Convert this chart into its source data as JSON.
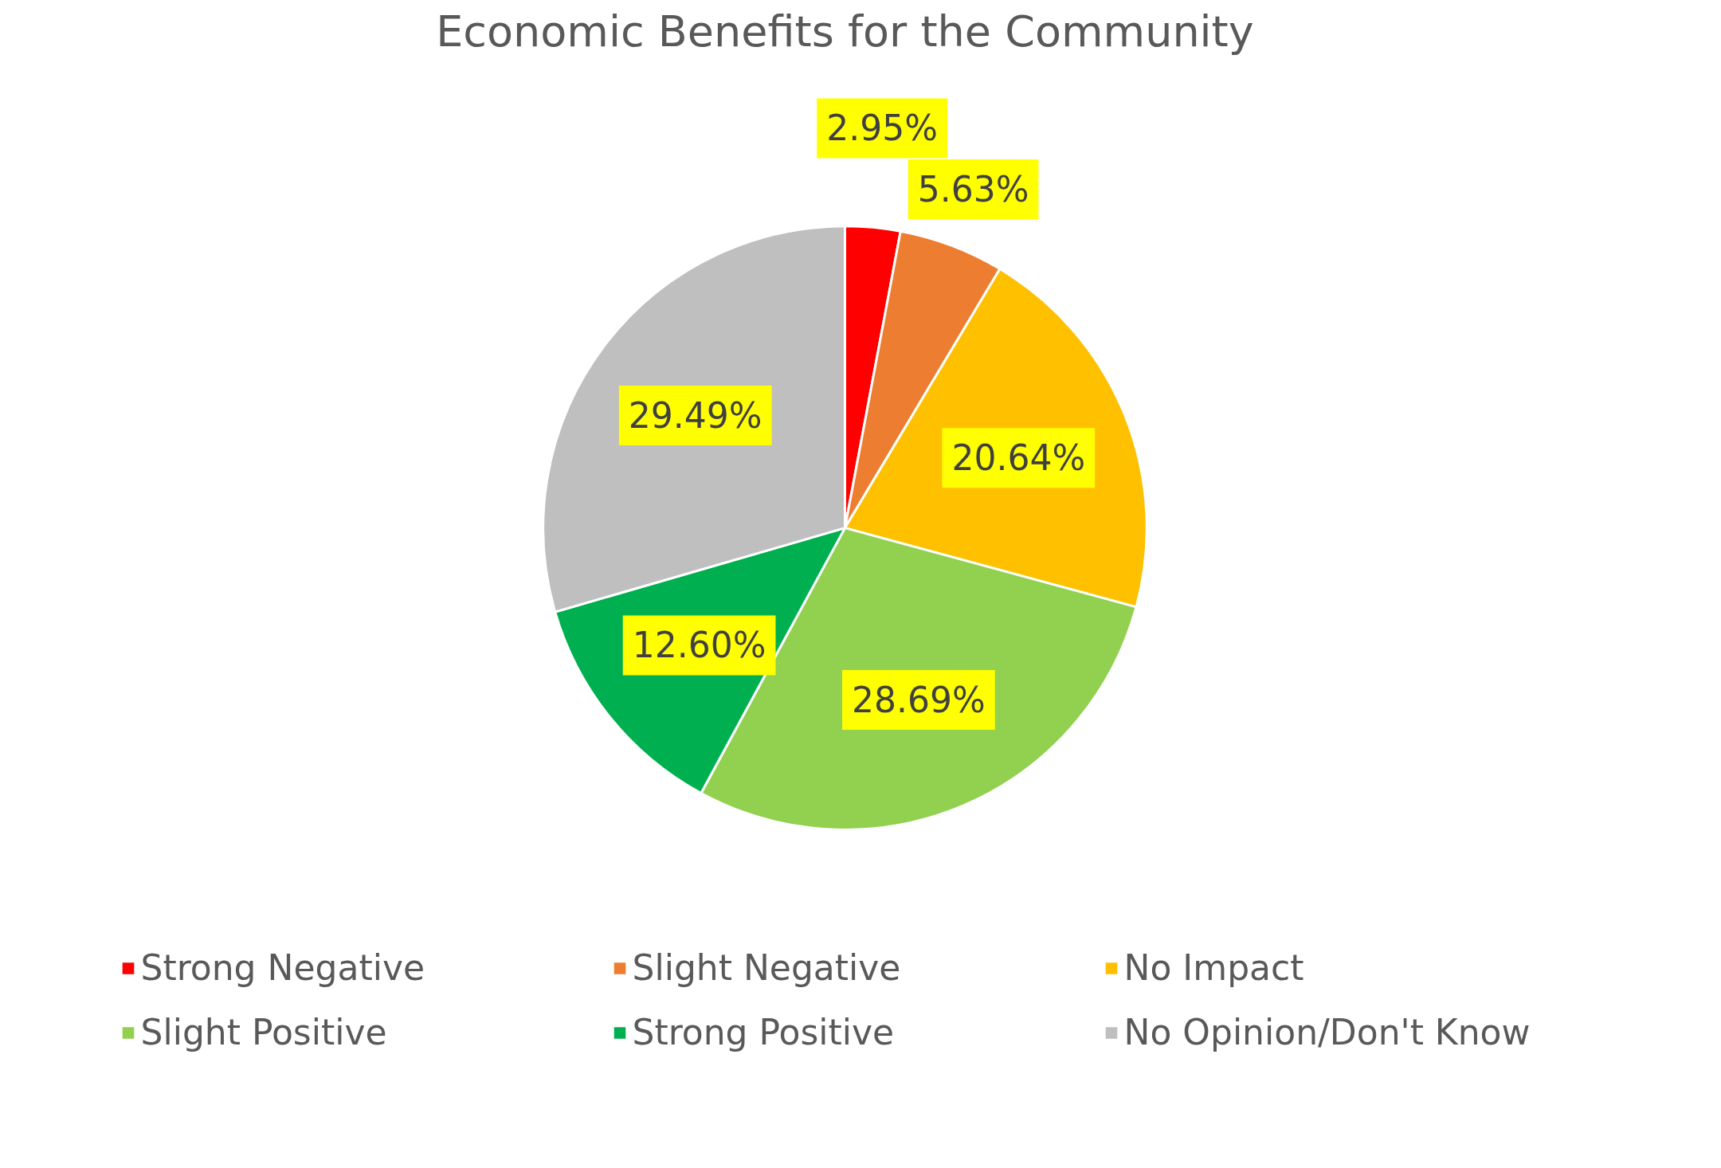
{
  "chart_data": {
    "type": "pie",
    "title": "Economic Benefits for the Community",
    "categories": [
      "Strong Negative",
      "Slight Negative",
      "No Impact",
      "Slight Positive",
      "Strong Positive",
      "No Opinion/Don't Know"
    ],
    "values": [
      2.95,
      5.63,
      20.64,
      28.69,
      12.6,
      29.49
    ],
    "colors": [
      "#ff0000",
      "#ed7d31",
      "#ffc000",
      "#92d050",
      "#00b050",
      "#bfbfbf"
    ],
    "value_labels": [
      "2.95%",
      "5.63%",
      "20.64%",
      "28.69%",
      "12.60%",
      "29.49%"
    ],
    "legend": "bottom"
  }
}
